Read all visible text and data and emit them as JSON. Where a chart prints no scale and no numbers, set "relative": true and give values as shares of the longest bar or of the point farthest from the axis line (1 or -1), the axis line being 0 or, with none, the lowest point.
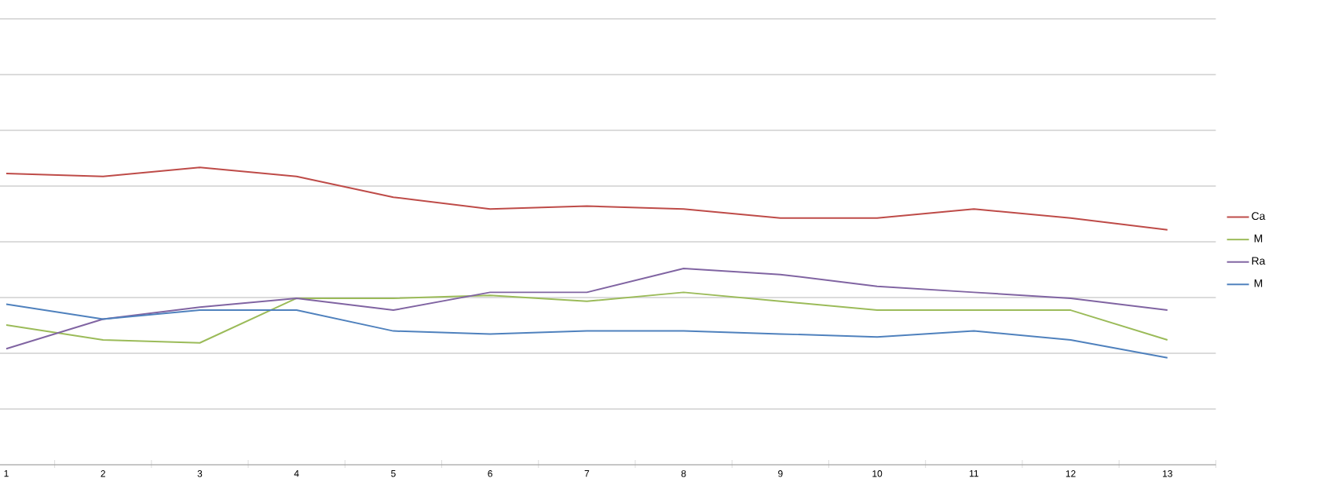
{
  "chart_data": {
    "type": "line",
    "relative": true,
    "grid": "y",
    "legend": "right",
    "categories": [
      "1",
      "2",
      "3",
      "4",
      "5",
      "6",
      "7",
      "8",
      "9",
      "10",
      "11",
      "12",
      "13"
    ],
    "series": [
      {
        "name": "Ca",
        "color": "#be4b48",
        "values": [
          0.98,
          0.97,
          1,
          0.97,
          0.9,
          0.86,
          0.87,
          0.86,
          0.83,
          0.83,
          0.86,
          0.83,
          0.79
        ]
      },
      {
        "name": "M",
        "color": "#9bbb59",
        "values": [
          0.47,
          0.42,
          0.41,
          0.56,
          0.56,
          0.57,
          0.55,
          0.58,
          0.55,
          0.52,
          0.52,
          0.52,
          0.42
        ]
      },
      {
        "name": "Ra",
        "color": "#8064a2",
        "values": [
          0.39,
          0.49,
          0.53,
          0.56,
          0.52,
          0.58,
          0.58,
          0.66,
          0.64,
          0.6,
          0.58,
          0.56,
          0.52
        ]
      },
      {
        "name": "M",
        "color": "#4f81bd",
        "values": [
          0.54,
          0.49,
          0.52,
          0.52,
          0.45,
          0.44,
          0.45,
          0.45,
          0.44,
          0.43,
          0.45,
          0.42,
          0.36
        ]
      }
    ]
  }
}
